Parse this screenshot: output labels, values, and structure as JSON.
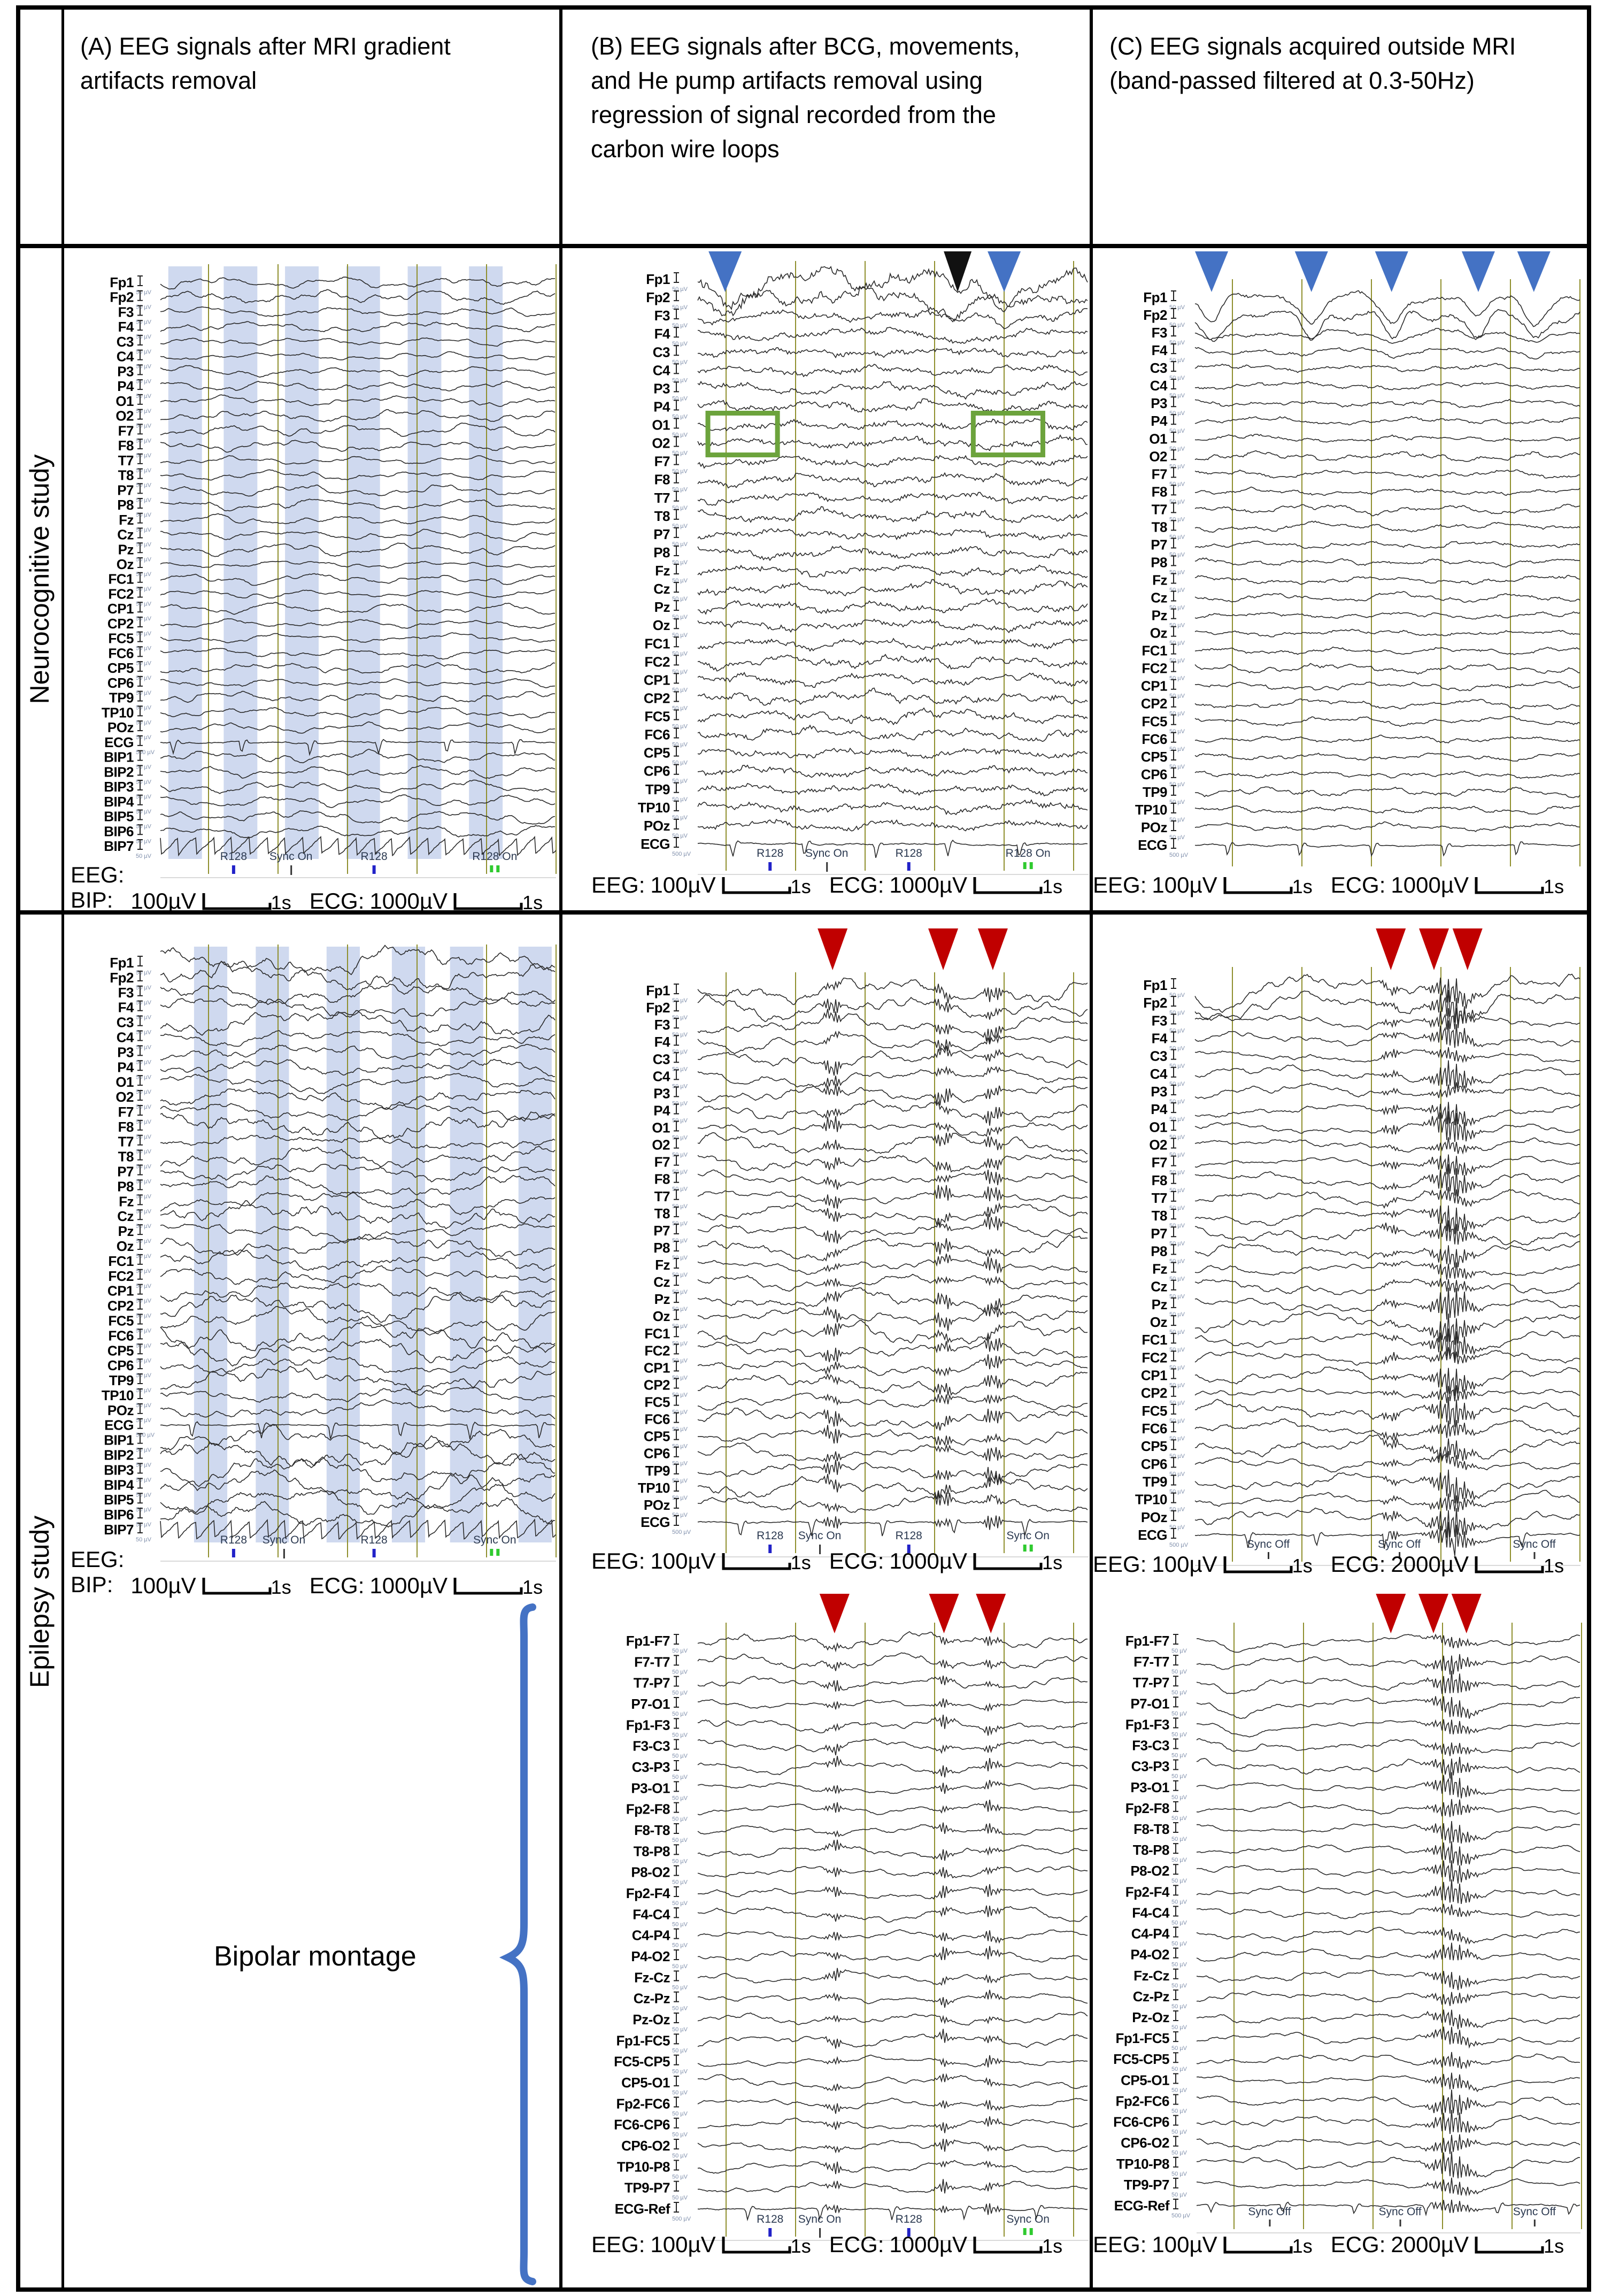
{
  "figure": {
    "headers": {
      "a": "(A) EEG signals after MRI gradient artifacts removal",
      "b": "(B) EEG signals after BCG, movements, and He pump artifacts removal using regression of signal recorded from the carbon wire loops",
      "c": "(C) EEG signals acquired outside MRI (band-passed filtered at 0.3-50Hz)"
    },
    "row_labels": {
      "row1": "Neurocognitive study",
      "row2": "Epilepsy study"
    },
    "bipolar_label": "Bipolar montage",
    "colors": {
      "accent_blue": "#4472C4",
      "arrow_black": "#111111",
      "accent_red": "#C00000",
      "grid_olive": "#8F8F2D",
      "band_blue": "#BDCBE9",
      "box_green": "#6CA33C",
      "trace": "#2A2A2A",
      "tick_blue": "#2222C8",
      "tick_green": "#2FCA2F",
      "event_text": "#2B3950",
      "chan_scale_text": "#8090AC",
      "brace_blue": "#4472C4",
      "separator_gray": "#D9D9D9"
    },
    "channel_scale": {
      "default": "50 µV",
      "ecg": "500 µV"
    },
    "channels": {
      "standard": [
        "Fp1",
        "Fp2",
        "F3",
        "F4",
        "C3",
        "C4",
        "P3",
        "P4",
        "O1",
        "O2",
        "F7",
        "F8",
        "T7",
        "T8",
        "P7",
        "P8",
        "Fz",
        "Cz",
        "Pz",
        "Oz",
        "FC1",
        "FC2",
        "CP1",
        "CP2",
        "FC5",
        "FC6",
        "CP5",
        "CP6",
        "TP9",
        "TP10",
        "POz",
        "ECG"
      ],
      "bip": [
        "BIP1",
        "BIP2",
        "BIP3",
        "BIP4",
        "BIP5",
        "BIP6",
        "BIP7"
      ],
      "bipolar": [
        "Fp1-F7",
        "F7-T7",
        "T7-P7",
        "P7-O1",
        "Fp1-F3",
        "F3-C3",
        "C3-P3",
        "P3-O1",
        "Fp2-F8",
        "F8-T8",
        "T8-P8",
        "P8-O2",
        "Fp2-F4",
        "F4-C4",
        "C4-P4",
        "P4-O2",
        "Fz-Cz",
        "Cz-Pz",
        "Pz-Oz",
        "Fp1-FC5",
        "FC5-CP5",
        "CP5-O1",
        "Fp2-FC6",
        "FC6-CP6",
        "CP6-O2",
        "TP10-P8",
        "TP9-P7",
        "ECG-Ref"
      ]
    },
    "panels": [
      {
        "id": "neuro-a",
        "study": "Neurocognitive study",
        "column": "A",
        "channel_set": "standard_bip",
        "bands": {
          "starts_rel": [
            0.02,
            0.16,
            0.315,
            0.47,
            0.625,
            0.78
          ],
          "width_rel": 0.085
        },
        "arrows": [],
        "boxes": [],
        "events": [
          {
            "label": "R128",
            "tick": "blue",
            "rel": 0.185
          },
          {
            "label": "Sync On",
            "tick": "black",
            "rel": 0.33
          },
          {
            "label": "R128",
            "tick": "blue",
            "rel": 0.54
          },
          {
            "label": "R128 On",
            "tick": "green2",
            "rel": 0.845
          }
        ],
        "scale": {
          "eeg_label": "EEG:",
          "bip_label": "BIP:",
          "eeg_value": "100µV",
          "eeg_time": "1s",
          "ecg_label": "ECG:",
          "ecg_value": "1000µV",
          "ecg_time": "1s"
        }
      },
      {
        "id": "neuro-b",
        "study": "Neurocognitive study",
        "column": "B",
        "channel_set": "standard",
        "bands": null,
        "arrows": [
          {
            "color": "blue",
            "rel": 0.07
          },
          {
            "color": "black",
            "rel": 0.665
          },
          {
            "color": "blue",
            "rel": 0.784
          }
        ],
        "boxes": [
          {
            "rel": 0.026,
            "width_rel": 0.178
          },
          {
            "rel": 0.705,
            "width_rel": 0.178
          }
        ],
        "events": [
          {
            "label": "R128",
            "tick": "blue",
            "rel": 0.185
          },
          {
            "label": "Sync On",
            "tick": "black",
            "rel": 0.33
          },
          {
            "label": "R128",
            "tick": "blue",
            "rel": 0.54
          },
          {
            "label": "R128 On",
            "tick": "green2",
            "rel": 0.845
          }
        ],
        "scale": {
          "eeg_label": "EEG:",
          "eeg_value": "100µV",
          "eeg_time": "1s",
          "ecg_label": "ECG:",
          "ecg_value": "1000µV",
          "ecg_time": "1s"
        }
      },
      {
        "id": "neuro-c",
        "study": "Neurocognitive study",
        "column": "C",
        "channel_set": "standard",
        "bands": null,
        "arrows": [
          {
            "color": "blue",
            "rel": 0.043
          },
          {
            "color": "blue",
            "rel": 0.302
          },
          {
            "color": "blue",
            "rel": 0.51
          },
          {
            "color": "blue",
            "rel": 0.735
          },
          {
            "color": "blue",
            "rel": 0.879
          }
        ],
        "boxes": [],
        "events": [],
        "scale": {
          "eeg_label": "EEG:",
          "eeg_value": "100µV",
          "eeg_time": "1s",
          "ecg_label": "ECG:",
          "ecg_value": "1000µV",
          "ecg_time": "1s"
        }
      },
      {
        "id": "epi-a",
        "study": "Epilepsy study",
        "column": "A",
        "channel_set": "standard_bip",
        "bands": {
          "starts_rel": [
            0.085,
            0.241,
            0.42,
            0.585,
            0.732,
            0.905
          ],
          "width_rel": 0.084
        },
        "arrows": [],
        "boxes": [],
        "events": [
          {
            "label": "R128",
            "tick": "blue",
            "rel": 0.185
          },
          {
            "label": "Sync On",
            "tick": "black",
            "rel": 0.312
          },
          {
            "label": "R128",
            "tick": "blue",
            "rel": 0.54
          },
          {
            "label": "Sync On",
            "tick": "green2",
            "rel": 0.845
          }
        ],
        "scale": {
          "eeg_label": "EEG:",
          "bip_label": "BIP:",
          "eeg_value": "100µV",
          "eeg_time": "1s",
          "ecg_label": "ECG:",
          "ecg_value": "1000µV",
          "ecg_time": "1s"
        }
      },
      {
        "id": "epi-b",
        "study": "Epilepsy study",
        "column": "B",
        "channel_set": "standard",
        "bands": null,
        "arrows": [
          {
            "color": "red",
            "rel": 0.345
          },
          {
            "color": "red",
            "rel": 0.628
          },
          {
            "color": "red",
            "rel": 0.755
          }
        ],
        "boxes": [],
        "events": [
          {
            "label": "R128",
            "tick": "blue",
            "rel": 0.185
          },
          {
            "label": "Sync On",
            "tick": "black",
            "rel": 0.312
          },
          {
            "label": "R128",
            "tick": "blue",
            "rel": 0.54
          },
          {
            "label": "Sync On",
            "tick": "green2",
            "rel": 0.845
          }
        ],
        "scale": {
          "eeg_label": "EEG:",
          "eeg_value": "100µV",
          "eeg_time": "1s",
          "ecg_label": "ECG:",
          "ecg_value": "1000µV",
          "ecg_time": "1s"
        }
      },
      {
        "id": "epi-c",
        "study": "Epilepsy study",
        "column": "C",
        "channel_set": "standard",
        "bands": null,
        "arrows": [
          {
            "color": "red",
            "rel": 0.508
          },
          {
            "color": "red",
            "rel": 0.62
          },
          {
            "color": "red",
            "rel": 0.707
          }
        ],
        "boxes": [],
        "events": [
          {
            "label": "Sync Off",
            "tick": "small",
            "rel": 0.19
          },
          {
            "label": "Sync Off",
            "tick": "small",
            "rel": 0.53
          },
          {
            "label": "Sync Off",
            "tick": "small",
            "rel": 0.88
          }
        ],
        "scale": {
          "eeg_label": "EEG:",
          "eeg_value": "100µV",
          "eeg_time": "1s",
          "ecg_label": "ECG:",
          "ecg_value": "2000µV",
          "ecg_time": "1s"
        }
      },
      {
        "id": "bip-b",
        "study": "Epilepsy study",
        "column": "B",
        "channel_set": "bipolar",
        "bands": null,
        "arrows": [
          {
            "color": "red",
            "rel": 0.35
          },
          {
            "color": "red",
            "rel": 0.63
          },
          {
            "color": "red",
            "rel": 0.75
          }
        ],
        "boxes": [],
        "events": [
          {
            "label": "R128",
            "tick": "blue",
            "rel": 0.185
          },
          {
            "label": "Sync On",
            "tick": "black",
            "rel": 0.312
          },
          {
            "label": "R128",
            "tick": "blue",
            "rel": 0.54
          },
          {
            "label": "Sync On",
            "tick": "green2",
            "rel": 0.845
          }
        ],
        "scale": {
          "eeg_label": "EEG:",
          "eeg_value": "100µV",
          "eeg_time": "1s",
          "ecg_label": "ECG:",
          "ecg_value": "1000µV",
          "ecg_time": "1s"
        }
      },
      {
        "id": "bip-c",
        "study": "Epilepsy study",
        "column": "C",
        "channel_set": "bipolar",
        "bands": null,
        "arrows": [
          {
            "color": "red",
            "rel": 0.506
          },
          {
            "color": "red",
            "rel": 0.617
          },
          {
            "color": "red",
            "rel": 0.703
          }
        ],
        "boxes": [],
        "events": [
          {
            "label": "Sync Off",
            "tick": "small",
            "rel": 0.19
          },
          {
            "label": "Sync Off",
            "tick": "small",
            "rel": 0.53
          },
          {
            "label": "Sync Off",
            "tick": "small",
            "rel": 0.88
          }
        ],
        "scale": {
          "eeg_label": "EEG:",
          "eeg_value": "100µV",
          "eeg_time": "1s",
          "ecg_label": "ECG:",
          "ecg_value": "2000µV",
          "ecg_time": "1s"
        }
      }
    ],
    "chart_data": {
      "type": "line",
      "description": "Eight EEG trace panels (time-series, ~6 s windows, 1 s gridlines) comparing artifact removal stages in MRI for a neurocognitive study and an epilepsy study.",
      "x_axis": {
        "unit": "s",
        "seconds_per_gridline": 1,
        "approx_window_s": 6
      },
      "panels": [
        {
          "id": "neuro-a",
          "channels": "standard+BIP1-7 (39)",
          "eeg_scale": "100µV/div",
          "ecg_scale": "1000µV/div",
          "time_scale": "1s",
          "annotations": "6 light-blue vertical bands (BCG artifact epochs); markers R128, Sync On, R128, R128 On"
        },
        {
          "id": "neuro-b",
          "channels": "standard (32)",
          "eeg_scale": "100µV/div",
          "ecg_scale": "1000µV/div",
          "time_scale": "1s",
          "annotations": "2 blue arrows + 1 black arrow above Fp1/Fp2 blink artifacts; 2 green boxes around O1/O2 alpha bursts; markers R128, Sync On, R128, R128 On"
        },
        {
          "id": "neuro-c",
          "channels": "standard (32)",
          "eeg_scale": "100µV/div",
          "ecg_scale": "1000µV/div",
          "time_scale": "1s",
          "annotations": "5 blue arrows above Fp1/Fp2 eye-blink deflections"
        },
        {
          "id": "epi-a",
          "channels": "standard+BIP1-7 (39)",
          "eeg_scale": "100µV/div",
          "ecg_scale": "1000µV/div",
          "time_scale": "1s",
          "annotations": "6 light-blue vertical bands; markers R128, Sync On, R128, Sync On"
        },
        {
          "id": "epi-b",
          "channels": "standard (32)",
          "eeg_scale": "100µV/div",
          "ecg_scale": "1000µV/div",
          "time_scale": "1s",
          "annotations": "3 red arrows marking epileptiform discharges; markers R128, Sync On, R128, Sync On"
        },
        {
          "id": "epi-c",
          "channels": "standard (32)",
          "eeg_scale": "100µV/div",
          "ecg_scale": "2000µV/div",
          "time_scale": "1s",
          "annotations": "3 red arrows marking spike-wave discharge; Sync Off markers ×3"
        },
        {
          "id": "bip-b",
          "channels": "bipolar montage (28)",
          "eeg_scale": "100µV/div",
          "ecg_scale": "1000µV/div",
          "time_scale": "1s",
          "annotations": "3 red arrows; markers R128, Sync On, R128, Sync On"
        },
        {
          "id": "bip-c",
          "channels": "bipolar montage (28)",
          "eeg_scale": "100µV/div",
          "ecg_scale": "2000µV/div",
          "time_scale": "1s",
          "annotations": "3 red arrows; Sync Off markers ×3"
        }
      ]
    }
  }
}
